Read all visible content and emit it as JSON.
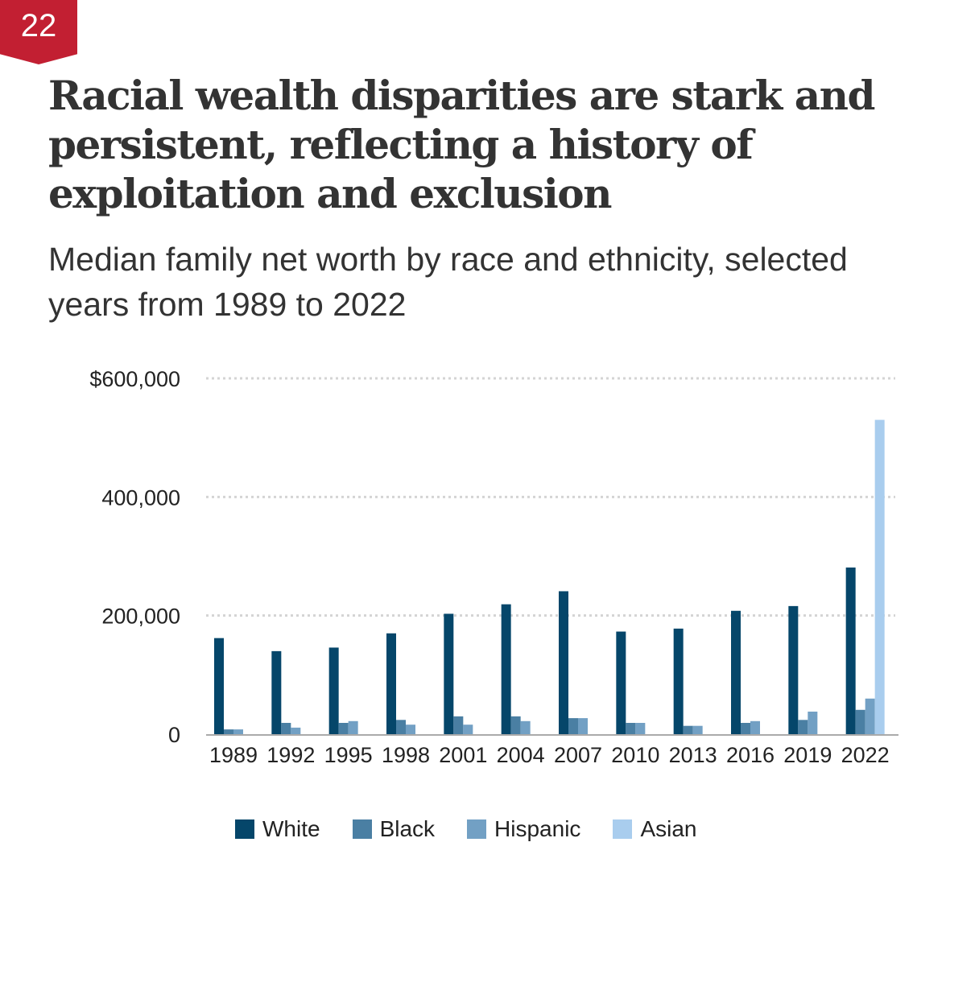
{
  "badge": "22",
  "title": "Racial wealth disparities are stark and persistent, reflecting a history of exploitation and exclusion",
  "subtitle": "Median family net worth by race and ethnicity, selected years from 1989 to 2022",
  "chart_data": {
    "type": "bar",
    "title": "Median family net worth by race and ethnicity, selected years from 1989 to 2022",
    "xlabel": "",
    "ylabel": "",
    "ylim": [
      0,
      600000
    ],
    "yticks": [
      0,
      200000,
      400000,
      600000
    ],
    "ytick_labels": [
      "0",
      "200,000",
      "400,000",
      "$600,000"
    ],
    "grid": true,
    "legend_position": "bottom",
    "categories": [
      "1989",
      "1992",
      "1995",
      "1998",
      "2001",
      "2004",
      "2007",
      "2010",
      "2013",
      "2016",
      "2019",
      "2022"
    ],
    "series": [
      {
        "name": "White",
        "color": "#05466a",
        "values": [
          162000,
          140000,
          146000,
          170000,
          203000,
          219000,
          241000,
          173000,
          178000,
          208000,
          216000,
          281000
        ]
      },
      {
        "name": "Black",
        "color": "#4a7fa3",
        "values": [
          8000,
          19000,
          19000,
          24000,
          30000,
          30000,
          27000,
          19000,
          14000,
          19000,
          24000,
          41000
        ]
      },
      {
        "name": "Hispanic",
        "color": "#72a0c4",
        "values": [
          8000,
          11000,
          22000,
          16000,
          16000,
          22000,
          27000,
          19000,
          14000,
          22000,
          38000,
          60000
        ]
      },
      {
        "name": "Asian",
        "color": "#a9cdee",
        "values": [
          null,
          null,
          null,
          null,
          null,
          null,
          null,
          null,
          null,
          null,
          null,
          530000
        ]
      }
    ]
  }
}
